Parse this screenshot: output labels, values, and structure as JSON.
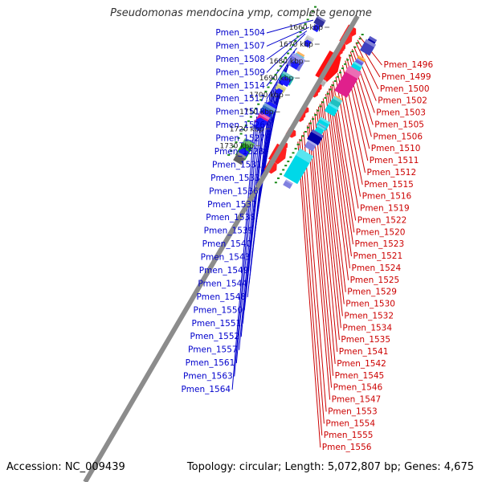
{
  "title": "Pseudomonas mendocina ymp, complete genome",
  "footer": {
    "accession": "Accession: NC_009439",
    "stats": "Topology: circular; Length: 5,072,807 bp; Genes: 4,675"
  },
  "colors": {
    "backbone": "#8c8c8c",
    "left_labels": "#0000cc",
    "right_labels": "#cc0000",
    "tick_dots": "#1a8a1a"
  },
  "kbp_ticks": [
    {
      "label": "1660 kbp",
      "t": 0.0
    },
    {
      "label": "1670 kbp",
      "t": 0.188
    },
    {
      "label": "1680 kbp",
      "t": 0.376
    },
    {
      "label": "1690 kbp",
      "t": 0.564
    },
    {
      "label": "1700 kbp",
      "t": 0.752
    },
    {
      "label": "1710 kbp",
      "t": 0.94
    },
    {
      "label": "1720 kbp",
      "t": 1.128
    },
    {
      "label": "1730 kbp",
      "t": 1.316
    }
  ],
  "left_genes": [
    {
      "label": "Pmen_1504",
      "t": 0.02
    },
    {
      "label": "Pmen_1507",
      "t": 0.1
    },
    {
      "label": "Pmen_1508",
      "t": 0.14
    },
    {
      "label": "Pmen_1509",
      "t": 0.17
    },
    {
      "label": "Pmen_1514",
      "t": 0.33
    },
    {
      "label": "Pmen_1517",
      "t": 0.37
    },
    {
      "label": "Pmen_1518",
      "t": 0.41
    },
    {
      "label": "Pmen_1526",
      "t": 0.44
    },
    {
      "label": "Pmen_1527",
      "t": 0.47
    },
    {
      "label": "Pmen_1528",
      "t": 0.5
    },
    {
      "label": "Pmen_1531",
      "t": 0.54
    },
    {
      "label": "Pmen_1533",
      "t": 0.57
    },
    {
      "label": "Pmen_1536",
      "t": 0.6
    },
    {
      "label": "Pmen_1537",
      "t": 0.63
    },
    {
      "label": "Pmen_1538",
      "t": 0.66
    },
    {
      "label": "Pmen_1539",
      "t": 0.7
    },
    {
      "label": "Pmen_1540",
      "t": 0.73
    },
    {
      "label": "Pmen_1543",
      "t": 0.76
    },
    {
      "label": "Pmen_1549",
      "t": 0.79
    },
    {
      "label": "Pmen_1544",
      "t": 0.81
    },
    {
      "label": "Pmen_1548",
      "t": 0.84
    },
    {
      "label": "Pmen_1550",
      "t": 0.9
    },
    {
      "label": "Pmen_1551",
      "t": 0.93
    },
    {
      "label": "Pmen_1552",
      "t": 0.96
    },
    {
      "label": "Pmen_1557",
      "t": 1.0
    },
    {
      "label": "Pmen_1561",
      "t": 1.05
    },
    {
      "label": "Pmen_1563",
      "t": 1.09
    },
    {
      "label": "Pmen_1564",
      "t": 1.13
    }
  ],
  "right_genes": [
    {
      "label": "Pmen_1496",
      "t": -0.07
    },
    {
      "label": "Pmen_1499",
      "t": -0.03
    },
    {
      "label": "Pmen_1500",
      "t": 0.0
    },
    {
      "label": "Pmen_1502",
      "t": 0.04
    },
    {
      "label": "Pmen_1503",
      "t": 0.07
    },
    {
      "label": "Pmen_1505",
      "t": 0.1
    },
    {
      "label": "Pmen_1506",
      "t": 0.13
    },
    {
      "label": "Pmen_1510",
      "t": 0.17
    },
    {
      "label": "Pmen_1511",
      "t": 0.2
    },
    {
      "label": "Pmen_1512",
      "t": 0.25
    },
    {
      "label": "Pmen_1515",
      "t": 0.3
    },
    {
      "label": "Pmen_1516",
      "t": 0.34
    },
    {
      "label": "Pmen_1519",
      "t": 0.38
    },
    {
      "label": "Pmen_1522",
      "t": 0.43
    },
    {
      "label": "Pmen_1520",
      "t": 0.46
    },
    {
      "label": "Pmen_1523",
      "t": 0.48
    },
    {
      "label": "Pmen_1521",
      "t": 0.51
    },
    {
      "label": "Pmen_1524",
      "t": 0.54
    },
    {
      "label": "Pmen_1525",
      "t": 0.57
    },
    {
      "label": "Pmen_1529",
      "t": 0.62
    },
    {
      "label": "Pmen_1530",
      "t": 0.65
    },
    {
      "label": "Pmen_1532",
      "t": 0.68
    },
    {
      "label": "Pmen_1534",
      "t": 0.71
    },
    {
      "label": "Pmen_1535",
      "t": 0.74
    },
    {
      "label": "Pmen_1541",
      "t": 0.78
    },
    {
      "label": "Pmen_1542",
      "t": 0.82
    },
    {
      "label": "Pmen_1545",
      "t": 0.86
    },
    {
      "label": "Pmen_1546",
      "t": 0.89
    },
    {
      "label": "Pmen_1547",
      "t": 0.92
    },
    {
      "label": "Pmen_1553",
      "t": 0.99
    },
    {
      "label": "Pmen_1554",
      "t": 1.03
    },
    {
      "label": "Pmen_1555",
      "t": 1.07
    },
    {
      "label": "Pmen_1556",
      "t": 1.1
    }
  ],
  "features": [
    {
      "t": -0.07,
      "side": "out",
      "color": "#ff1a1a",
      "shape": "arrow",
      "w": 14,
      "h": 12
    },
    {
      "t": -0.07,
      "side": "far",
      "color": "#0000aa",
      "shape": "box",
      "w": 10,
      "h": 14
    },
    {
      "t": -0.04,
      "side": "far",
      "color": "#00d0a0",
      "shape": "box",
      "w": 10,
      "h": 8
    },
    {
      "t": -0.02,
      "side": "far",
      "color": "#4040c0",
      "shape": "box",
      "w": 14,
      "h": 16
    },
    {
      "t": 0.0,
      "side": "in",
      "color": "#3030a0",
      "shape": "box",
      "w": 12,
      "h": 10
    },
    {
      "t": 0.01,
      "side": "out",
      "color": "#ff2a2a",
      "shape": "arrow",
      "w": 14,
      "h": 14
    },
    {
      "t": 0.07,
      "side": "in",
      "color": "#1a1aff",
      "shape": "arrow",
      "w": 8,
      "h": 8
    },
    {
      "t": 0.1,
      "side": "out",
      "color": "#ff2020",
      "shape": "arrow",
      "w": 9,
      "h": 9
    },
    {
      "t": 0.12,
      "side": "out",
      "color": "#ff2020",
      "shape": "arrow",
      "w": 9,
      "h": 9
    },
    {
      "t": 0.12,
      "side": "far",
      "color": "#ff9a1a",
      "shape": "box",
      "w": 10,
      "h": 8
    },
    {
      "t": 0.15,
      "side": "out",
      "color": "#ff2020",
      "shape": "arrow",
      "w": 9,
      "h": 9
    },
    {
      "t": 0.15,
      "side": "far",
      "color": "#6060e0",
      "shape": "box",
      "w": 10,
      "h": 8
    },
    {
      "t": 0.2,
      "side": "in",
      "color": "#c8c8c8",
      "shape": "box",
      "w": 10,
      "h": 8
    },
    {
      "t": 0.2,
      "side": "out",
      "color": "#ff2020",
      "shape": "arrow",
      "w": 9,
      "h": 9
    },
    {
      "t": 0.2,
      "side": "far",
      "color": "#00d8e8",
      "shape": "box",
      "w": 12,
      "h": 10
    },
    {
      "t": 0.24,
      "side": "in",
      "color": "#1a1aff",
      "shape": "arrow",
      "w": 8,
      "h": 8
    },
    {
      "t": 0.33,
      "side": "out",
      "color": "#ff1010",
      "shape": "arrow",
      "w": 22,
      "h": 36
    },
    {
      "t": 0.36,
      "side": "far",
      "color": "#e0208c",
      "shape": "box",
      "w": 18,
      "h": 36
    },
    {
      "t": 0.39,
      "side": "in",
      "color": "#ff9010",
      "shape": "box",
      "w": 10,
      "h": 10
    },
    {
      "t": 0.41,
      "side": "in",
      "color": "#30a0d0",
      "shape": "box",
      "w": 12,
      "h": 10
    },
    {
      "t": 0.45,
      "side": "in",
      "color": "#7070e0",
      "shape": "box",
      "w": 18,
      "h": 16
    },
    {
      "t": 0.48,
      "side": "in",
      "color": "#1a1aff",
      "shape": "arrow",
      "w": 10,
      "h": 8
    },
    {
      "t": 0.46,
      "side": "out",
      "color": "#ff2020",
      "shape": "arrow",
      "w": 8,
      "h": 8
    },
    {
      "t": 0.49,
      "side": "out",
      "color": "#b0b0b0",
      "shape": "box",
      "w": 10,
      "h": 8
    },
    {
      "t": 0.55,
      "side": "out",
      "color": "#ff2020",
      "shape": "arrow",
      "w": 9,
      "h": 9
    },
    {
      "t": 0.57,
      "side": "far",
      "color": "#ff9010",
      "shape": "box",
      "w": 10,
      "h": 10
    },
    {
      "t": 0.58,
      "side": "out",
      "color": "#ff2020",
      "shape": "arrow",
      "w": 9,
      "h": 9
    },
    {
      "t": 0.6,
      "side": "far",
      "color": "#20c0c0",
      "shape": "box",
      "w": 12,
      "h": 14
    },
    {
      "t": 0.62,
      "side": "out",
      "color": "#ff2020",
      "shape": "arrow",
      "w": 9,
      "h": 9
    },
    {
      "t": 0.63,
      "side": "in",
      "color": "#20b0b0",
      "shape": "box",
      "w": 16,
      "h": 12
    },
    {
      "t": 0.66,
      "side": "in",
      "color": "#1a1aff",
      "shape": "arrow",
      "w": 12,
      "h": 10
    },
    {
      "t": 0.67,
      "side": "far",
      "color": "#00d8e8",
      "shape": "box",
      "w": 14,
      "h": 12
    },
    {
      "t": 0.74,
      "side": "in",
      "color": "#d0d080",
      "shape": "box",
      "w": 12,
      "h": 8
    },
    {
      "t": 0.78,
      "side": "in",
      "color": "#1a1aff",
      "shape": "arrow",
      "w": 8,
      "h": 8
    },
    {
      "t": 0.8,
      "side": "out",
      "color": "#ff2020",
      "shape": "arrow",
      "w": 10,
      "h": 8
    },
    {
      "t": 0.83,
      "side": "far",
      "color": "#00d8e8",
      "shape": "box",
      "w": 14,
      "h": 12
    },
    {
      "t": 0.86,
      "side": "out",
      "color": "#ff2020",
      "shape": "arrow",
      "w": 9,
      "h": 9
    },
    {
      "t": 0.87,
      "side": "far",
      "color": "#30a0d0",
      "shape": "box",
      "w": 10,
      "h": 8
    },
    {
      "t": 0.89,
      "side": "out",
      "color": "#ff2020",
      "shape": "arrow",
      "w": 9,
      "h": 9
    },
    {
      "t": 0.9,
      "side": "far",
      "color": "#00d8e8",
      "shape": "box",
      "w": 10,
      "h": 10
    },
    {
      "t": 0.93,
      "side": "in",
      "color": "#606060",
      "shape": "box",
      "w": 10,
      "h": 8
    },
    {
      "t": 0.94,
      "side": "in",
      "color": "#1a1aff",
      "shape": "arrow",
      "w": 14,
      "h": 10
    },
    {
      "t": 0.98,
      "side": "far",
      "color": "#0000aa",
      "shape": "box",
      "w": 16,
      "h": 14
    },
    {
      "t": 0.99,
      "side": "in",
      "color": "#3070c0",
      "shape": "box",
      "w": 16,
      "h": 14
    },
    {
      "t": 1.03,
      "side": "in",
      "color": "#1a1aff",
      "shape": "arrow",
      "w": 14,
      "h": 12
    },
    {
      "t": 1.06,
      "side": "out",
      "color": "#ff2020",
      "shape": "arrow",
      "w": 12,
      "h": 10
    },
    {
      "t": 1.07,
      "side": "far",
      "color": "#8080e0",
      "shape": "box",
      "w": 12,
      "h": 10
    },
    {
      "t": 1.09,
      "side": "in",
      "color": "#e0208c",
      "shape": "box",
      "w": 14,
      "h": 14
    },
    {
      "t": 1.12,
      "side": "in",
      "color": "#1a1aff",
      "shape": "arrow",
      "w": 14,
      "h": 10
    },
    {
      "t": 1.17,
      "side": "in",
      "color": "#1a1aff",
      "shape": "arrow",
      "w": 10,
      "h": 8
    },
    {
      "t": 1.2,
      "side": "out",
      "color": "#ff2020",
      "shape": "arrow",
      "w": 9,
      "h": 9
    },
    {
      "t": 1.23,
      "side": "out",
      "color": "#ff2020",
      "shape": "arrow",
      "w": 9,
      "h": 9
    },
    {
      "t": 1.25,
      "side": "far",
      "color": "#606060",
      "shape": "box",
      "w": 14,
      "h": 22
    },
    {
      "t": 1.3,
      "side": "far",
      "color": "#00d8e8",
      "shape": "box",
      "w": 20,
      "h": 40
    },
    {
      "t": 1.3,
      "side": "out",
      "color": "#ff2020",
      "shape": "arrow",
      "w": 18,
      "h": 22
    },
    {
      "t": 1.36,
      "side": "in",
      "color": "#1a1aff",
      "shape": "arrow",
      "w": 14,
      "h": 10
    },
    {
      "t": 1.37,
      "side": "in",
      "color": "#c0c0c0",
      "shape": "box",
      "w": 10,
      "h": 8
    },
    {
      "t": 1.42,
      "side": "in",
      "color": "#20a020",
      "shape": "box",
      "w": 14,
      "h": 24
    },
    {
      "t": 1.44,
      "side": "out",
      "color": "#ff2020",
      "shape": "arrow",
      "w": 14,
      "h": 14
    },
    {
      "t": 1.46,
      "side": "in",
      "color": "#1a1aff",
      "shape": "arrow",
      "w": 12,
      "h": 10
    },
    {
      "t": 1.5,
      "side": "far",
      "color": "#8080e0",
      "shape": "box",
      "w": 10,
      "h": 8
    },
    {
      "t": 1.52,
      "side": "in",
      "color": "#606060",
      "shape": "box",
      "w": 12,
      "h": 12
    }
  ]
}
